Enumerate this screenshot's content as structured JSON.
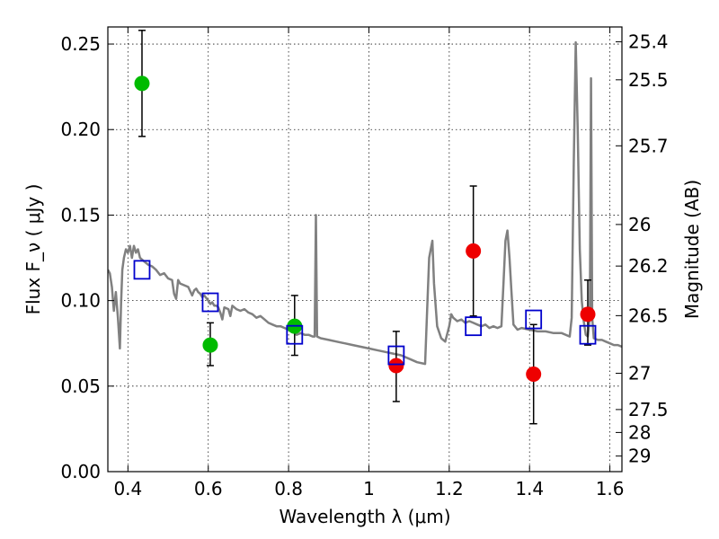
{
  "chart_data": {
    "type": "scatter",
    "xlabel": "Wavelength  λ (μm)",
    "ylabel": "Flux  F_ν  ( μJy )",
    "ylabel_right": "Magnitude (AB)",
    "xlim": [
      0.35,
      1.63
    ],
    "ylim": [
      0.0,
      0.26
    ],
    "x_ticks": [
      0.4,
      0.6,
      0.8,
      1.0,
      1.2,
      1.4,
      1.6
    ],
    "x_tick_labels": [
      "0.4",
      "0.6",
      "0.8",
      "1",
      "1.2",
      "1.4",
      "1.6"
    ],
    "y_ticks": [
      0.0,
      0.05,
      0.1,
      0.15,
      0.2,
      0.25
    ],
    "y_tick_labels": [
      "0.00",
      "0.05",
      "0.10",
      "0.15",
      "0.20",
      "0.25"
    ],
    "right_ticks": [
      {
        "label": "25.4",
        "flux": 0.2513
      },
      {
        "label": "25.5",
        "flux": 0.2291
      },
      {
        "label": "25.7",
        "flux": 0.1905
      },
      {
        "label": "26",
        "flux": 0.1445
      },
      {
        "label": "26.2",
        "flux": 0.1202
      },
      {
        "label": "26.5",
        "flux": 0.0912
      },
      {
        "label": "27",
        "flux": 0.0575
      },
      {
        "label": "27.5",
        "flux": 0.0363
      },
      {
        "label": "28",
        "flux": 0.0229
      },
      {
        "label": "29",
        "flux": 0.0091
      }
    ],
    "grid": true,
    "colors": {
      "model": "#808080",
      "green": "#00bb00",
      "red": "#ee0000",
      "box": "#0000cc",
      "errorbar": "#000000"
    },
    "series": [
      {
        "kind": "line",
        "color": "#808080",
        "points": [
          [
            0.35,
            0.118
          ],
          [
            0.355,
            0.116
          ],
          [
            0.36,
            0.108
          ],
          [
            0.365,
            0.094
          ],
          [
            0.37,
            0.105
          ],
          [
            0.375,
            0.09
          ],
          [
            0.38,
            0.072
          ],
          [
            0.383,
            0.098
          ],
          [
            0.386,
            0.118
          ],
          [
            0.39,
            0.125
          ],
          [
            0.395,
            0.13
          ],
          [
            0.4,
            0.128
          ],
          [
            0.405,
            0.132
          ],
          [
            0.41,
            0.125
          ],
          [
            0.415,
            0.132
          ],
          [
            0.42,
            0.128
          ],
          [
            0.425,
            0.13
          ],
          [
            0.43,
            0.125
          ],
          [
            0.435,
            0.124
          ],
          [
            0.44,
            0.123
          ],
          [
            0.45,
            0.121
          ],
          [
            0.46,
            0.12
          ],
          [
            0.47,
            0.118
          ],
          [
            0.48,
            0.115
          ],
          [
            0.49,
            0.116
          ],
          [
            0.5,
            0.113
          ],
          [
            0.51,
            0.112
          ],
          [
            0.515,
            0.104
          ],
          [
            0.52,
            0.101
          ],
          [
            0.525,
            0.112
          ],
          [
            0.53,
            0.11
          ],
          [
            0.54,
            0.109
          ],
          [
            0.55,
            0.108
          ],
          [
            0.56,
            0.103
          ],
          [
            0.565,
            0.106
          ],
          [
            0.57,
            0.107
          ],
          [
            0.575,
            0.105
          ],
          [
            0.58,
            0.104
          ],
          [
            0.585,
            0.102
          ],
          [
            0.59,
            0.103
          ],
          [
            0.6,
            0.1
          ],
          [
            0.605,
            0.098
          ],
          [
            0.61,
            0.099
          ],
          [
            0.615,
            0.097
          ],
          [
            0.62,
            0.097
          ],
          [
            0.625,
            0.096
          ],
          [
            0.63,
            0.093
          ],
          [
            0.635,
            0.089
          ],
          [
            0.64,
            0.096
          ],
          [
            0.65,
            0.095
          ],
          [
            0.655,
            0.091
          ],
          [
            0.66,
            0.097
          ],
          [
            0.67,
            0.095
          ],
          [
            0.68,
            0.094
          ],
          [
            0.69,
            0.095
          ],
          [
            0.7,
            0.093
          ],
          [
            0.71,
            0.092
          ],
          [
            0.72,
            0.09
          ],
          [
            0.73,
            0.091
          ],
          [
            0.74,
            0.089
          ],
          [
            0.75,
            0.087
          ],
          [
            0.76,
            0.086
          ],
          [
            0.77,
            0.085
          ],
          [
            0.78,
            0.085
          ],
          [
            0.79,
            0.084
          ],
          [
            0.8,
            0.083
          ],
          [
            0.81,
            0.082
          ],
          [
            0.82,
            0.08
          ],
          [
            0.83,
            0.081
          ],
          [
            0.84,
            0.08
          ],
          [
            0.85,
            0.08
          ],
          [
            0.86,
            0.079
          ],
          [
            0.865,
            0.079
          ],
          [
            0.868,
            0.15
          ],
          [
            0.871,
            0.079
          ],
          [
            0.88,
            0.078
          ],
          [
            0.9,
            0.077
          ],
          [
            0.92,
            0.076
          ],
          [
            0.94,
            0.075
          ],
          [
            0.96,
            0.074
          ],
          [
            0.98,
            0.073
          ],
          [
            1.0,
            0.072
          ],
          [
            1.02,
            0.071
          ],
          [
            1.04,
            0.07
          ],
          [
            1.06,
            0.069
          ],
          [
            1.08,
            0.068
          ],
          [
            1.1,
            0.066
          ],
          [
            1.12,
            0.064
          ],
          [
            1.14,
            0.063
          ],
          [
            1.145,
            0.095
          ],
          [
            1.15,
            0.125
          ],
          [
            1.158,
            0.135
          ],
          [
            1.162,
            0.11
          ],
          [
            1.17,
            0.085
          ],
          [
            1.18,
            0.078
          ],
          [
            1.19,
            0.076
          ],
          [
            1.2,
            0.085
          ],
          [
            1.205,
            0.092
          ],
          [
            1.21,
            0.09
          ],
          [
            1.22,
            0.088
          ],
          [
            1.23,
            0.089
          ],
          [
            1.24,
            0.087
          ],
          [
            1.25,
            0.088
          ],
          [
            1.26,
            0.087
          ],
          [
            1.27,
            0.086
          ],
          [
            1.28,
            0.085
          ],
          [
            1.29,
            0.086
          ],
          [
            1.3,
            0.084
          ],
          [
            1.31,
            0.085
          ],
          [
            1.32,
            0.084
          ],
          [
            1.33,
            0.085
          ],
          [
            1.335,
            0.11
          ],
          [
            1.34,
            0.135
          ],
          [
            1.345,
            0.141
          ],
          [
            1.35,
            0.125
          ],
          [
            1.355,
            0.105
          ],
          [
            1.36,
            0.086
          ],
          [
            1.37,
            0.083
          ],
          [
            1.38,
            0.084
          ],
          [
            1.4,
            0.083
          ],
          [
            1.42,
            0.082
          ],
          [
            1.44,
            0.082
          ],
          [
            1.46,
            0.081
          ],
          [
            1.48,
            0.081
          ],
          [
            1.5,
            0.079
          ],
          [
            1.505,
            0.09
          ],
          [
            1.51,
            0.18
          ],
          [
            1.515,
            0.251
          ],
          [
            1.52,
            0.2
          ],
          [
            1.525,
            0.13
          ],
          [
            1.53,
            0.1
          ],
          [
            1.535,
            0.088
          ],
          [
            1.54,
            0.08
          ],
          [
            1.545,
            0.079
          ],
          [
            1.55,
            0.09
          ],
          [
            1.553,
            0.23
          ],
          [
            1.556,
            0.09
          ],
          [
            1.56,
            0.078
          ],
          [
            1.57,
            0.077
          ],
          [
            1.58,
            0.077
          ],
          [
            1.59,
            0.076
          ],
          [
            1.6,
            0.075
          ],
          [
            1.61,
            0.074
          ],
          [
            1.62,
            0.074
          ],
          [
            1.63,
            0.073
          ]
        ]
      },
      {
        "kind": "points",
        "marker": "circle",
        "color": "#00bb00",
        "points": [
          {
            "x": 0.435,
            "y": 0.227,
            "lo": 0.196,
            "hi": 0.258
          },
          {
            "x": 0.605,
            "y": 0.074,
            "lo": 0.062,
            "hi": 0.087
          },
          {
            "x": 0.815,
            "y": 0.085,
            "lo": 0.068,
            "hi": 0.103
          }
        ]
      },
      {
        "kind": "points",
        "marker": "circle",
        "color": "#ee0000",
        "points": [
          {
            "x": 1.068,
            "y": 0.062,
            "lo": 0.041,
            "hi": 0.082
          },
          {
            "x": 1.26,
            "y": 0.129,
            "lo": 0.091,
            "hi": 0.167
          },
          {
            "x": 1.41,
            "y": 0.057,
            "lo": 0.028,
            "hi": 0.086
          },
          {
            "x": 1.545,
            "y": 0.092,
            "lo": 0.074,
            "hi": 0.112
          }
        ]
      },
      {
        "kind": "points",
        "marker": "square",
        "color": "#0000cc",
        "points": [
          {
            "x": 0.435,
            "y": 0.118
          },
          {
            "x": 0.605,
            "y": 0.099
          },
          {
            "x": 0.815,
            "y": 0.08
          },
          {
            "x": 1.068,
            "y": 0.068
          },
          {
            "x": 1.26,
            "y": 0.085
          },
          {
            "x": 1.41,
            "y": 0.089
          },
          {
            "x": 1.545,
            "y": 0.08
          }
        ]
      }
    ]
  }
}
